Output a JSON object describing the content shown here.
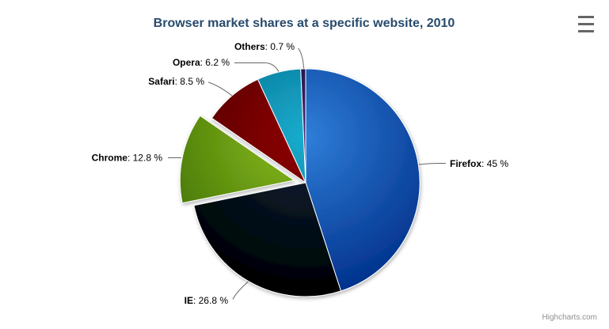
{
  "chart_data": {
    "type": "pie",
    "title": "Browser market shares at a specific website, 2010",
    "title_color": "#274b6d",
    "unit": "%",
    "legend": "none",
    "label_format": "name: value %",
    "slices": [
      {
        "name": "Firefox",
        "value": 45,
        "display_value": "45 %",
        "color": "#2f7ed8",
        "sliced": false
      },
      {
        "name": "IE",
        "value": 26.8,
        "display_value": "26.8 %",
        "color": "#0d233a",
        "sliced": false
      },
      {
        "name": "Chrome",
        "value": 12.8,
        "display_value": "12.8 %",
        "color": "#8bbc21",
        "sliced": true
      },
      {
        "name": "Safari",
        "value": 8.5,
        "display_value": "8.5 %",
        "color": "#910000",
        "sliced": false
      },
      {
        "name": "Opera",
        "value": 6.2,
        "display_value": "6.2 %",
        "color": "#1aadce",
        "sliced": false
      },
      {
        "name": "Others",
        "value": 0.7,
        "display_value": "0.7 %",
        "color": "#492970",
        "sliced": false
      }
    ],
    "connector_color": "#666666"
  },
  "toolbar": {
    "menu_icon": "hamburger-icon"
  },
  "credits": {
    "label": "Highcharts.com",
    "color": "#909090"
  }
}
